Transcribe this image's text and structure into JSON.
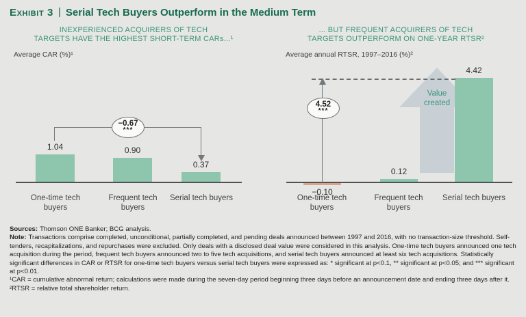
{
  "header": {
    "exhibit_label": "Exhibit 3",
    "divider": "|",
    "title": "Serial Tech Buyers Outperform in the Medium Term"
  },
  "charts": [
    {
      "subtitle_line1": "INEXPERIENCED ACQUIRERS OF TECH",
      "subtitle_line2": "TARGETS HAVE THE HIGHEST SHORT-TERM CARs...¹",
      "axis_label": "Average CAR (%)¹"
    },
    {
      "subtitle_line1": "... BUT FREQUENT ACQUIRERS OF TECH",
      "subtitle_line2": "TARGETS OUTPERFORM ON ONE-YEAR RTSR²",
      "axis_label": "Average annual RTSR, 1997–2016 (%)²"
    }
  ],
  "chart_data": [
    {
      "type": "bar",
      "title": "Inexperienced acquirers of tech targets have the highest short-term CARs",
      "ylabel": "Average CAR (%)",
      "categories": [
        "One-time tech buyers",
        "Frequent tech buyers",
        "Serial tech buyers"
      ],
      "values": [
        1.04,
        0.9,
        0.37
      ],
      "value_labels": [
        "1.04",
        "0.90",
        "0.37"
      ],
      "bar_colors": [
        "#8dc6ac",
        "#8dc6ac",
        "#8dc6ac"
      ],
      "grid": false,
      "annotation": {
        "value": "−0.67",
        "significance": "***",
        "meaning": "difference between one-time and serial tech buyers"
      }
    },
    {
      "type": "bar",
      "title": "... but frequent acquirers of tech targets outperform on one-year RTSR",
      "ylabel": "Average annual RTSR, 1997–2016 (%)",
      "categories": [
        "One-time tech buyers",
        "Frequent tech buyers",
        "Serial tech buyers"
      ],
      "values": [
        -0.1,
        0.12,
        4.42
      ],
      "value_labels": [
        "−0.10",
        "0.12",
        "4.42"
      ],
      "bar_colors": [
        "#dfa088",
        "#8dc6ac",
        "#8dc6ac"
      ],
      "grid": false,
      "annotation": {
        "value": "4.52",
        "significance": "***",
        "meaning": "difference between one-time and serial tech buyers"
      },
      "arrow_label": "Value created"
    }
  ],
  "footnotes": {
    "sources_label": "Sources:",
    "sources_text": "Thomson ONE Banker; BCG analysis.",
    "note_label": "Note:",
    "note_text": "Transactions comprise completed, unconditional, partially completed, and pending deals announced between 1997 and 2016, with no transaction-size threshold. Self-tenders, recapitalizations, and repurchases were excluded. Only deals with a disclosed deal value were considered in this analysis. One-time tech buyers announced one tech acquisition during the period, frequent tech buyers announced two to five tech acquisitions, and serial tech buyers announced at least six tech acquisitions. Statistically significant differences in CAR or RTSR for one-time tech buyers versus serial tech buyers were expressed as: * significant at p<0.1, ** significant at p<0.05; and *** significant at p<0.01.",
    "footnote1": "¹CAR = cumulative abnormal return; calculations were made during the seven-day period beginning three days before an announcement date and ending three days after it.",
    "footnote2": "²RTSR = relative total shareholder return."
  },
  "colors": {
    "background": "#e6e6e4",
    "title_green": "#166a50",
    "subtitle_green": "#3a947c",
    "bar_green": "#8dc6ac",
    "bar_orange": "#dfa088",
    "value_arrow_gray": "#c8d0d6",
    "axis_gray": "#4e5254",
    "annotation_gray": "#73787b",
    "text_dark": "#2b2b2b"
  }
}
